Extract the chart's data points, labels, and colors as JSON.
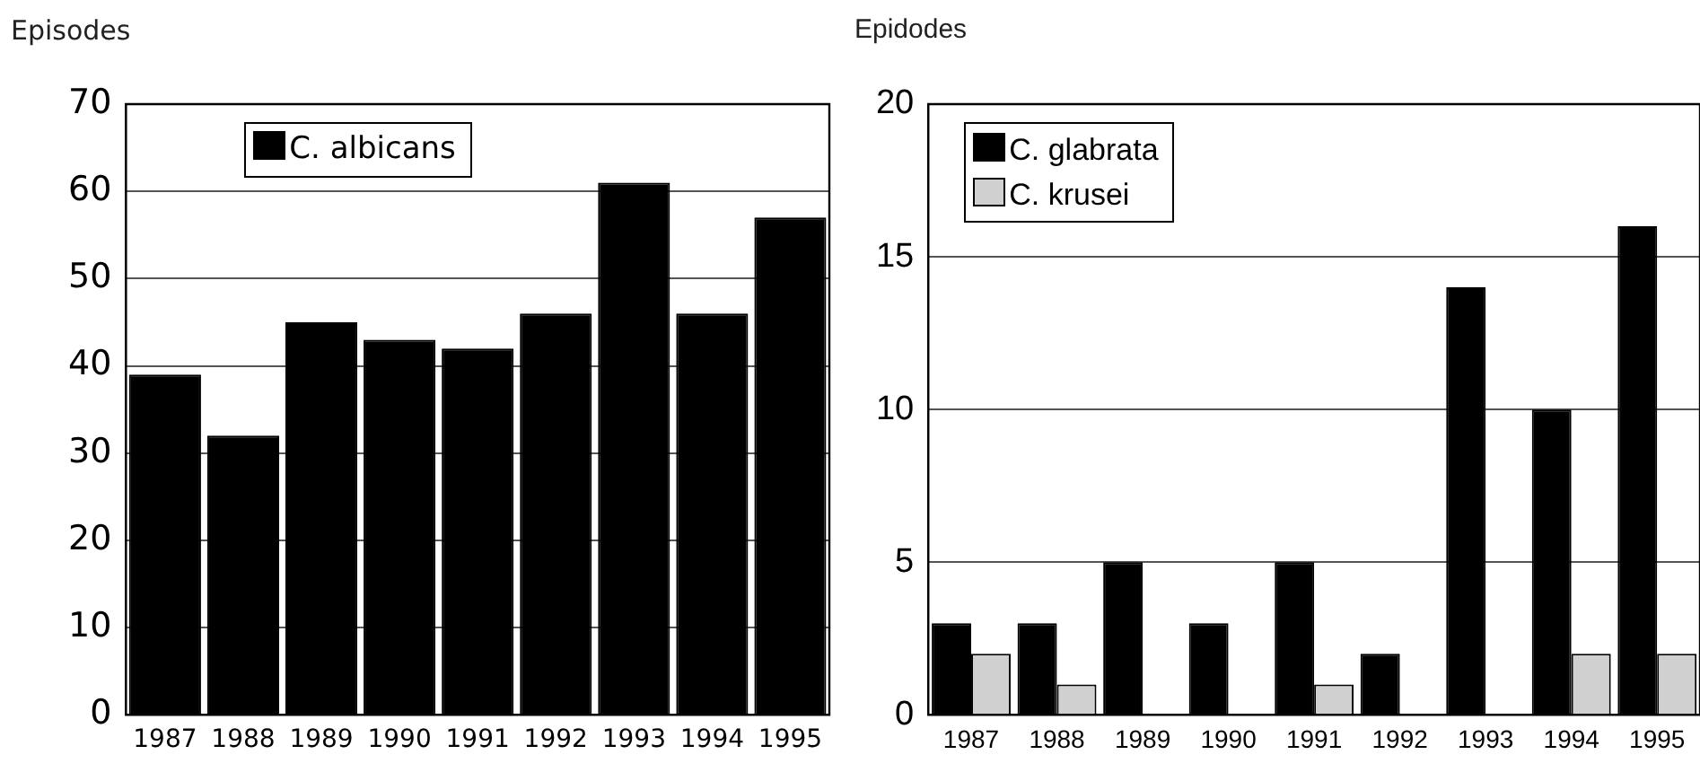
{
  "chart_data": [
    {
      "type": "bar",
      "ylabel": "Episodes",
      "categories": [
        "1987",
        "1988",
        "1989",
        "1990",
        "1991",
        "1992",
        "1993",
        "1994",
        "1995"
      ],
      "series": [
        {
          "name": "C. albicans",
          "color": "#000000",
          "values": [
            39,
            32,
            45,
            43,
            42,
            46,
            61,
            46,
            57
          ]
        }
      ],
      "ylim": [
        0,
        70
      ],
      "yticks": [
        0,
        10,
        20,
        30,
        40,
        50,
        60,
        70
      ],
      "grid": "y",
      "legend": "top left"
    },
    {
      "type": "bar",
      "ylabel": "Epidodes",
      "categories": [
        "1987",
        "1988",
        "1989",
        "1990",
        "1991",
        "1992",
        "1993",
        "1994",
        "1995"
      ],
      "series": [
        {
          "name": "C. glabrata",
          "color": "#000000",
          "values": [
            3,
            3,
            5,
            3,
            5,
            2,
            14,
            10,
            16
          ]
        },
        {
          "name": "C. krusei",
          "color": "#d0d0d0",
          "values": [
            2,
            1,
            0,
            0,
            1,
            0,
            0,
            2,
            2
          ]
        }
      ],
      "ylim": [
        0,
        20
      ],
      "yticks": [
        0,
        5,
        10,
        15,
        20
      ],
      "grid": "y",
      "legend": "top left"
    }
  ]
}
